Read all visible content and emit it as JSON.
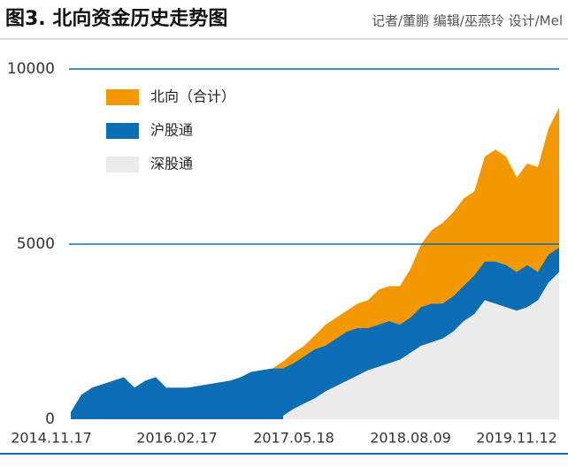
{
  "chart_data": {
    "type": "area",
    "title": "图3. 北向资金历史走势图",
    "subtitle": "记者/董鹏  编辑/巫燕玲  设计/Mel",
    "categories": [
      "2014.11.17",
      null,
      null,
      null,
      null,
      null,
      null,
      null,
      null,
      null,
      "2016.02.17",
      null,
      null,
      null,
      null,
      null,
      null,
      null,
      null,
      null,
      null,
      "2017.05.18",
      null,
      null,
      null,
      null,
      null,
      null,
      null,
      null,
      null,
      null,
      "2018.08.09",
      null,
      null,
      null,
      null,
      null,
      null,
      null,
      null,
      null,
      "2019.11.12",
      null,
      null,
      null,
      null
    ],
    "series": [
      {
        "name": "北向（合计）",
        "color": "#f39800",
        "values": [
          200,
          700,
          900,
          1000,
          1100,
          1200,
          900,
          1100,
          1200,
          900,
          900,
          900,
          950,
          1000,
          1050,
          1100,
          1200,
          1350,
          1400,
          1450,
          1650,
          1900,
          2100,
          2400,
          2700,
          2900,
          3100,
          3300,
          3400,
          3700,
          3800,
          3800,
          4300,
          5000,
          5400,
          5600,
          5900,
          6300,
          6500,
          7500,
          7700,
          7500,
          6900,
          7300,
          7200,
          8300,
          8900
        ]
      },
      {
        "name": "沪股通",
        "color": "#0b6eb5",
        "values": [
          200,
          700,
          900,
          1000,
          1100,
          1200,
          900,
          1100,
          1200,
          900,
          900,
          900,
          950,
          1000,
          1050,
          1100,
          1200,
          1350,
          1400,
          1450,
          1450,
          1600,
          1800,
          2000,
          2100,
          2300,
          2500,
          2600,
          2600,
          2700,
          2800,
          2700,
          2900,
          3200,
          3300,
          3300,
          3500,
          3800,
          4100,
          4500,
          4500,
          4400,
          4200,
          4400,
          4200,
          4700,
          4900
        ]
      },
      {
        "name": "深股通",
        "color": "#ebebeb",
        "values": [
          null,
          null,
          null,
          null,
          null,
          null,
          null,
          null,
          null,
          null,
          null,
          null,
          null,
          null,
          null,
          null,
          null,
          null,
          null,
          null,
          100,
          300,
          450,
          600,
          800,
          950,
          1100,
          1250,
          1400,
          1500,
          1600,
          1700,
          1900,
          2100,
          2200,
          2300,
          2500,
          2800,
          3000,
          3400,
          3300,
          3200,
          3100,
          3200,
          3400,
          3900,
          4200
        ]
      }
    ],
    "ylim": [
      0,
      10000
    ],
    "yticks": [
      0,
      5000,
      10000
    ],
    "grid": true
  }
}
